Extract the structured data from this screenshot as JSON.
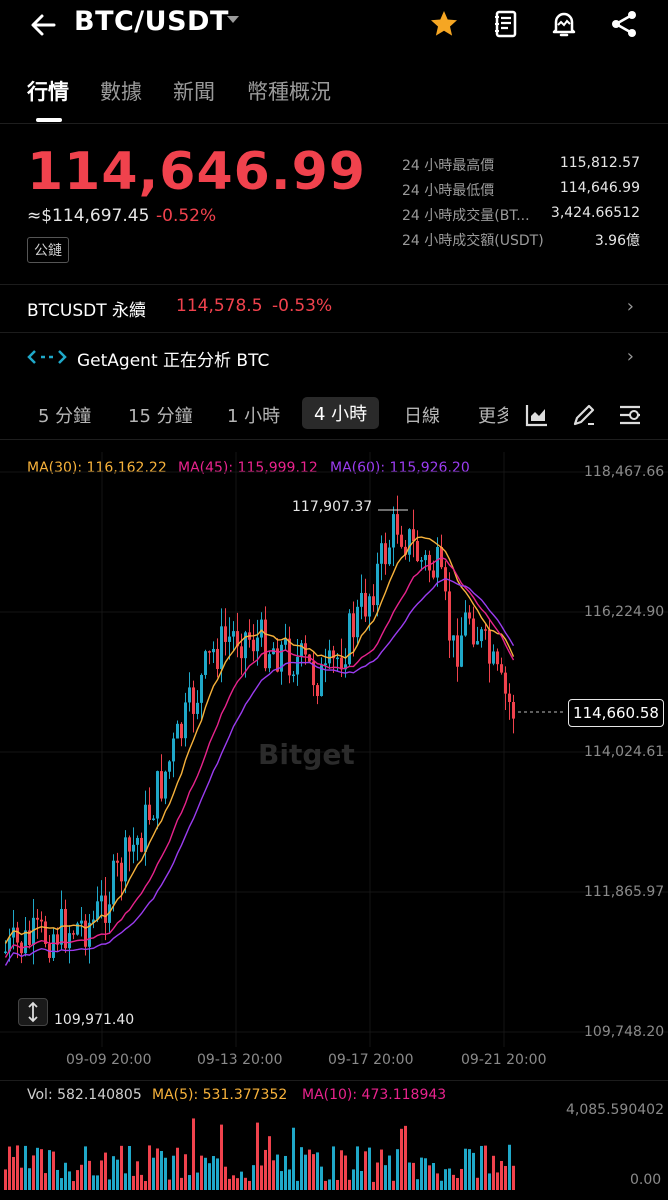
{
  "header": {
    "pair": "BTC/USDT",
    "icons": [
      "back-arrow-icon",
      "caret-down-icon",
      "star-icon",
      "notebook-icon",
      "alert-bell-icon",
      "share-icon"
    ]
  },
  "tabs": [
    "行情",
    "數據",
    "新聞",
    "幣種概況"
  ],
  "price": {
    "last": "114,646.99",
    "usd": "≈$114,697.45",
    "change": "-0.52%",
    "badge": "公鏈"
  },
  "stats": [
    {
      "label": "24 小時最高價",
      "value": "115,812.57"
    },
    {
      "label": "24 小時最低價",
      "value": "114,646.99"
    },
    {
      "label": "24 小時成交量(BT...",
      "value": "3,424.66512"
    },
    {
      "label": "24 小時成交額(USDT)",
      "value": "3.96億"
    }
  ],
  "perp": {
    "name": "BTCUSDT  永續",
    "price": "114,578.5",
    "change": "-0.53%"
  },
  "agent": {
    "text": "GetAgent 正在分析 BTC"
  },
  "intervals": [
    "5 分鐘",
    "15 分鐘",
    "1 小時",
    "4 小時",
    "日線",
    "更多"
  ],
  "interval_active": "4 小時",
  "ma": {
    "ma30": "MA(30): 116,162.22",
    "ma45": "MA(45): 115,999.12",
    "ma60": "MA(60): 115,926.20"
  },
  "colors": {
    "up": "#1fa8c9",
    "down": "#f0424d",
    "ma30": "#f7b23b",
    "ma45": "#e8238d",
    "ma60": "#9b3cf0"
  },
  "y_axis": [
    "118,467.66",
    "116,224.90",
    "114,024.61",
    "111,865.97",
    "109,748.20"
  ],
  "x_axis": [
    "09-09 20:00",
    "09-13 20:00",
    "09-17 20:00",
    "09-21 20:00"
  ],
  "current_price_tag": "114,660.58",
  "high_label": "117,907.37",
  "low_label": "109,971.40",
  "watermark": "Bitget",
  "volume": {
    "vol": "Vol: 582.140805",
    "ma5": "MA(5): 531.377352",
    "ma10": "MA(10): 473.118943",
    "max": "4,085.590402",
    "min": "0.00"
  }
}
